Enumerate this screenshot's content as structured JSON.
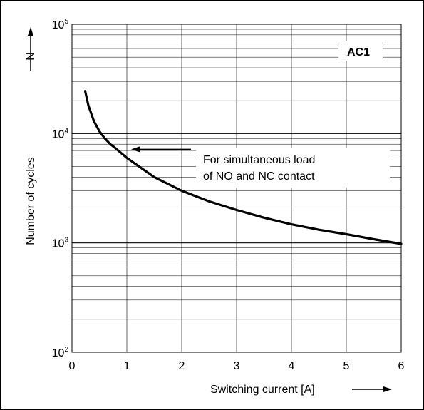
{
  "chart_data": {
    "type": "line",
    "title": "",
    "xlabel": "Switching current [A]",
    "ylabel": "Number of cycles",
    "ysymbol": "N",
    "xlim": [
      0,
      6
    ],
    "ylim": [
      100,
      100000
    ],
    "yscale": "log",
    "grid": true,
    "x_ticks": [
      "0",
      "1",
      "2",
      "3",
      "4",
      "5",
      "6"
    ],
    "y_ticks": [
      {
        "base": "10",
        "exp": "2"
      },
      {
        "base": "10",
        "exp": "3"
      },
      {
        "base": "10",
        "exp": "4"
      },
      {
        "base": "10",
        "exp": "5"
      }
    ],
    "series": [
      {
        "name": "AC1",
        "x": [
          0.24,
          0.3,
          0.4,
          0.5,
          0.6,
          0.7,
          0.8,
          1.0,
          1.5,
          2.0,
          2.5,
          3.0,
          3.5,
          4.0,
          4.5,
          5.0,
          5.5,
          6.0
        ],
        "y": [
          24500,
          18000,
          13000,
          10500,
          9000,
          8000,
          7300,
          6000,
          4000,
          3000,
          2400,
          2000,
          1700,
          1480,
          1320,
          1200,
          1080,
          980
        ]
      }
    ],
    "annotations": [
      {
        "line1": "For simultaneous load",
        "line2": "of NO and NC contact",
        "arrow_to_x": 1.0,
        "arrow_to_y": 6000
      }
    ]
  }
}
